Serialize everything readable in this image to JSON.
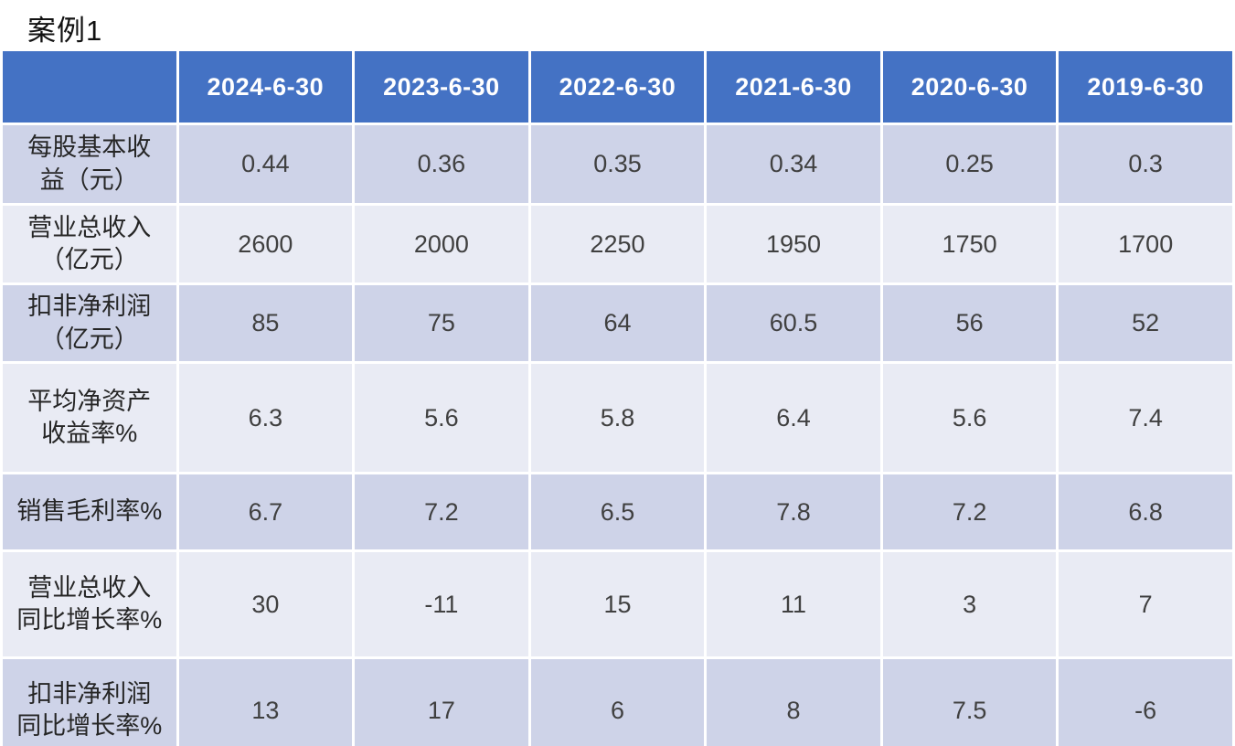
{
  "title": "案例1",
  "colors": {
    "header_bg": "#4472c4",
    "header_text": "#ffffff",
    "band_dark": "#ced3e8",
    "band_light": "#e9ebf4",
    "grid_gap": "#ffffff",
    "label_text": "#262626",
    "value_text": "#404040"
  },
  "chart_data": {
    "type": "table",
    "title": "案例1",
    "columns": [
      "",
      "2024-6-30",
      "2023-6-30",
      "2022-6-30",
      "2021-6-30",
      "2020-6-30",
      "2019-6-30"
    ],
    "rows": [
      {
        "label": "每股基本收\n益（元）",
        "label_plain": "每股基本收益（元）",
        "values": [
          "0.44",
          "0.36",
          "0.35",
          "0.34",
          "0.25",
          "0.3"
        ]
      },
      {
        "label": "营业总收入\n（亿元）",
        "label_plain": "营业总收入（亿元）",
        "values": [
          "2600",
          "2000",
          "2250",
          "1950",
          "1750",
          "1700"
        ]
      },
      {
        "label": "扣非净利润\n（亿元）",
        "label_plain": "扣非净利润（亿元）",
        "values": [
          "85",
          "75",
          "64",
          "60.5",
          "56",
          "52"
        ]
      },
      {
        "label": "平均净资产\n收益率%",
        "label_plain": "平均净资产收益率%",
        "values": [
          "6.3",
          "5.6",
          "5.8",
          "6.4",
          "5.6",
          "7.4"
        ]
      },
      {
        "label": "销售毛利率%",
        "label_plain": "销售毛利率%",
        "values": [
          "6.7",
          "7.2",
          "6.5",
          "7.8",
          "7.2",
          "6.8"
        ]
      },
      {
        "label": "营业总收入\n同比增长率%",
        "label_plain": "营业总收入同比增长率%",
        "values": [
          "30",
          "-11",
          "15",
          "11",
          "3",
          "7"
        ]
      },
      {
        "label": "扣非净利润\n同比增长率%",
        "label_plain": "扣非净利润同比增长率%",
        "values": [
          "13",
          "17",
          "6",
          "8",
          "7.5",
          "-6"
        ]
      }
    ]
  }
}
